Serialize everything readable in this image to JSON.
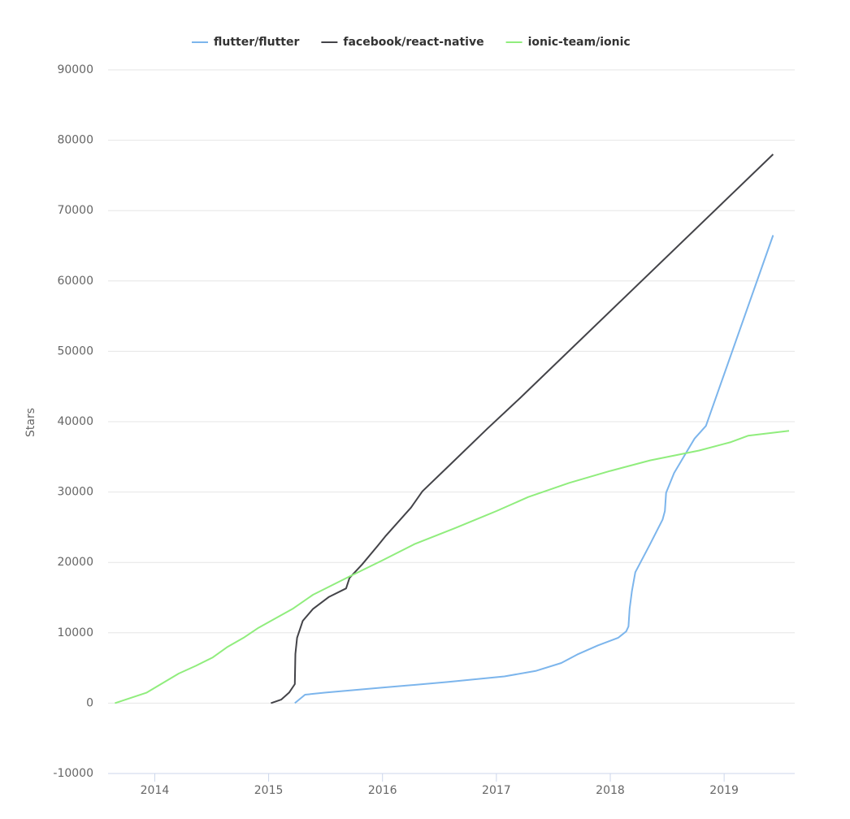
{
  "chart_data": {
    "type": "line",
    "y_label": "Stars",
    "xlim": [
      2013.59,
      2019.62
    ],
    "xticks": [
      2014,
      2015,
      2016,
      2017,
      2018,
      2019
    ],
    "ylim": [
      -10000,
      90000
    ],
    "yticks": [
      -10000,
      0,
      10000,
      20000,
      30000,
      40000,
      50000,
      60000,
      70000,
      80000,
      90000
    ],
    "grid": true,
    "legend": "top",
    "series": [
      {
        "name": "flutter/flutter",
        "color": "#7cb5ec",
        "x": [
          2015.23,
          2015.32,
          2015.5,
          2016,
          2016.57,
          2017.07,
          2017.35,
          2017.57,
          2017.71,
          2017.89,
          2018.07,
          2018.14,
          2018.16,
          2018.17,
          2018.19,
          2018.22,
          2018.35,
          2018.46,
          2018.48,
          2018.49,
          2018.56,
          2018.67,
          2018.74,
          2018.84,
          2019.43
        ],
        "values": [
          0,
          1200,
          1500,
          2200,
          3000,
          3800,
          4600,
          5700,
          6900,
          8200,
          9300,
          10200,
          10900,
          13400,
          15900,
          18600,
          22600,
          26100,
          27300,
          29900,
          32700,
          35700,
          37600,
          39400,
          66500
        ]
      },
      {
        "name": "facebook/react-native",
        "color": "#434348",
        "x": [
          2015.02,
          2015.11,
          2015.18,
          2015.23,
          2015.235,
          2015.25,
          2015.3,
          2015.39,
          2015.53,
          2015.68,
          2015.71,
          2015.82,
          2015.96,
          2016.03,
          2016.25,
          2016.35,
          2016.6,
          2016.92,
          2017.21,
          2019.43
        ],
        "values": [
          0,
          500,
          1500,
          2700,
          7000,
          9300,
          11700,
          13400,
          15100,
          16300,
          17800,
          19700,
          22400,
          23800,
          27800,
          30100,
          34000,
          39000,
          43400,
          78000
        ]
      },
      {
        "name": "ionic-team/ionic",
        "color": "#90ed7d",
        "x": [
          2013.65,
          2013.93,
          2014.21,
          2014.36,
          2014.51,
          2014.64,
          2014.78,
          2014.91,
          2015.21,
          2015.39,
          2015.71,
          2016,
          2016.28,
          2016.64,
          2017,
          2017.28,
          2017.64,
          2018,
          2018.35,
          2018.78,
          2019.06,
          2019.21,
          2019.57
        ],
        "values": [
          0,
          1500,
          4200,
          5300,
          6500,
          8000,
          9300,
          10700,
          13400,
          15400,
          18000,
          20300,
          22600,
          24900,
          27300,
          29300,
          31300,
          33000,
          34500,
          35900,
          37100,
          38000,
          38700
        ]
      }
    ]
  }
}
